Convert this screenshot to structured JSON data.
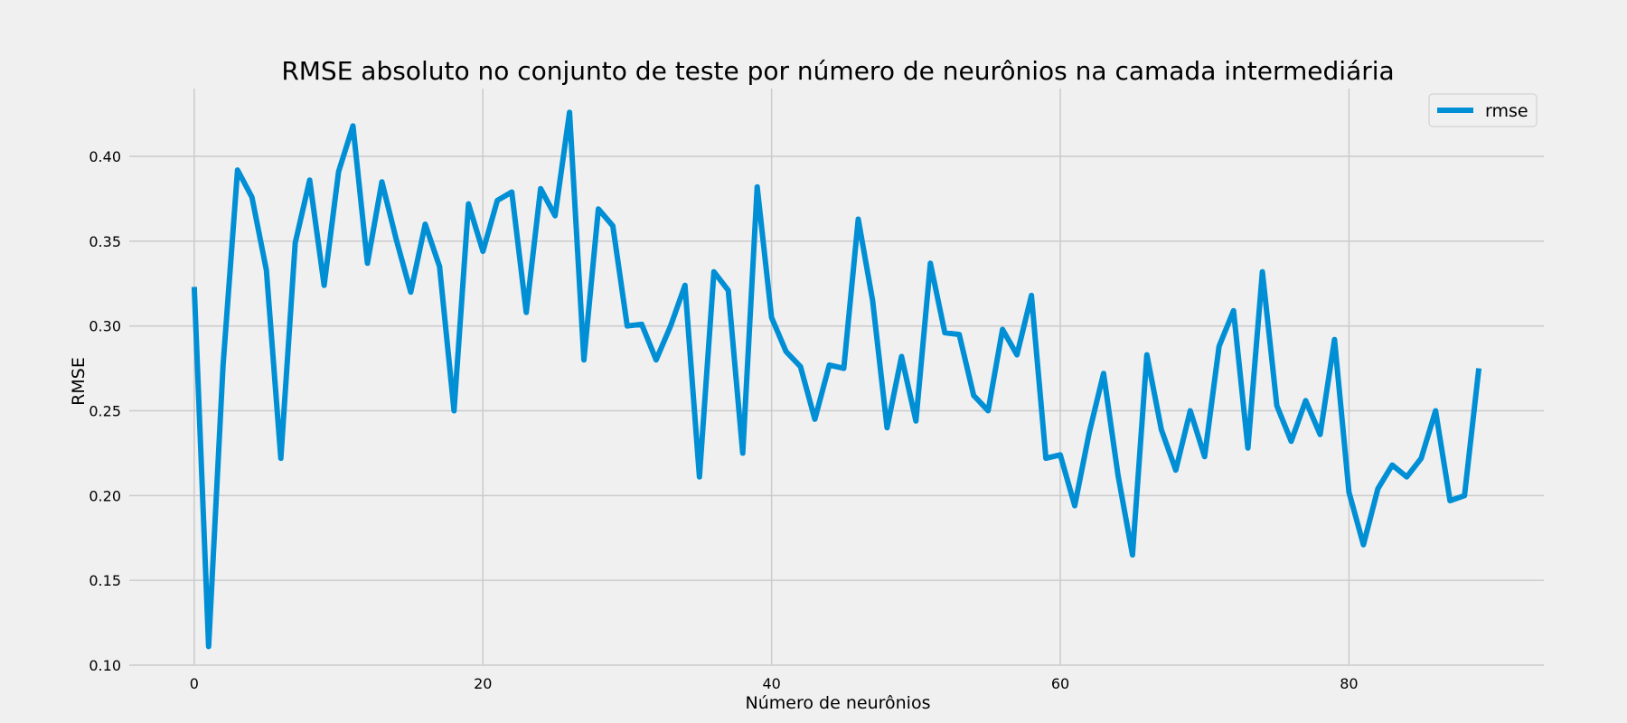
{
  "chart_data": {
    "type": "line",
    "title": "RMSE absoluto no conjunto de teste por número de neurônios na camada intermediária",
    "xlabel": "Número de neurônios",
    "ylabel": "RMSE",
    "xlim": [
      -4.5,
      93.5
    ],
    "ylim": [
      0.1,
      0.44
    ],
    "xticks": [
      0,
      20,
      40,
      60,
      80
    ],
    "xtick_labels": [
      "0",
      "20",
      "40",
      "60",
      "80"
    ],
    "yticks": [
      0.1,
      0.15,
      0.2,
      0.25,
      0.3,
      0.35,
      0.4
    ],
    "ytick_labels": [
      "0.10",
      "0.15",
      "0.20",
      "0.25",
      "0.30",
      "0.35",
      "0.40"
    ],
    "grid": true,
    "legend_position": "top-right",
    "series": [
      {
        "name": "rmse",
        "color": "#008fd5",
        "x": [
          0,
          1,
          2,
          3,
          4,
          5,
          6,
          7,
          8,
          9,
          10,
          11,
          12,
          13,
          14,
          15,
          16,
          17,
          18,
          19,
          20,
          21,
          22,
          23,
          24,
          25,
          26,
          27,
          28,
          29,
          30,
          31,
          32,
          33,
          34,
          35,
          36,
          37,
          38,
          39,
          40,
          41,
          42,
          43,
          44,
          45,
          46,
          47,
          48,
          49,
          50,
          51,
          52,
          53,
          54,
          55,
          56,
          57,
          58,
          59,
          60,
          61,
          62,
          63,
          64,
          65,
          66,
          67,
          68,
          69,
          70,
          71,
          72,
          73,
          74,
          75,
          76,
          77,
          78,
          79,
          80,
          81,
          82,
          83,
          84,
          85,
          86,
          87,
          88,
          89
        ],
        "y": [
          0.323,
          0.111,
          0.277,
          0.392,
          0.376,
          0.333,
          0.222,
          0.349,
          0.386,
          0.324,
          0.391,
          0.418,
          0.337,
          0.385,
          0.351,
          0.32,
          0.36,
          0.335,
          0.25,
          0.372,
          0.344,
          0.374,
          0.379,
          0.308,
          0.381,
          0.365,
          0.426,
          0.28,
          0.369,
          0.359,
          0.3,
          0.301,
          0.28,
          0.3,
          0.324,
          0.211,
          0.332,
          0.321,
          0.225,
          0.382,
          0.305,
          0.285,
          0.276,
          0.245,
          0.277,
          0.275,
          0.363,
          0.315,
          0.24,
          0.282,
          0.244,
          0.337,
          0.296,
          0.295,
          0.259,
          0.25,
          0.298,
          0.283,
          0.318,
          0.222,
          0.224,
          0.194,
          0.237,
          0.272,
          0.212,
          0.165,
          0.283,
          0.239,
          0.215,
          0.25,
          0.223,
          0.288,
          0.309,
          0.228,
          0.332,
          0.253,
          0.232,
          0.256,
          0.236,
          0.292,
          0.202,
          0.171,
          0.204,
          0.218,
          0.211,
          0.222,
          0.25,
          0.197,
          0.2,
          0.275
        ]
      }
    ]
  }
}
